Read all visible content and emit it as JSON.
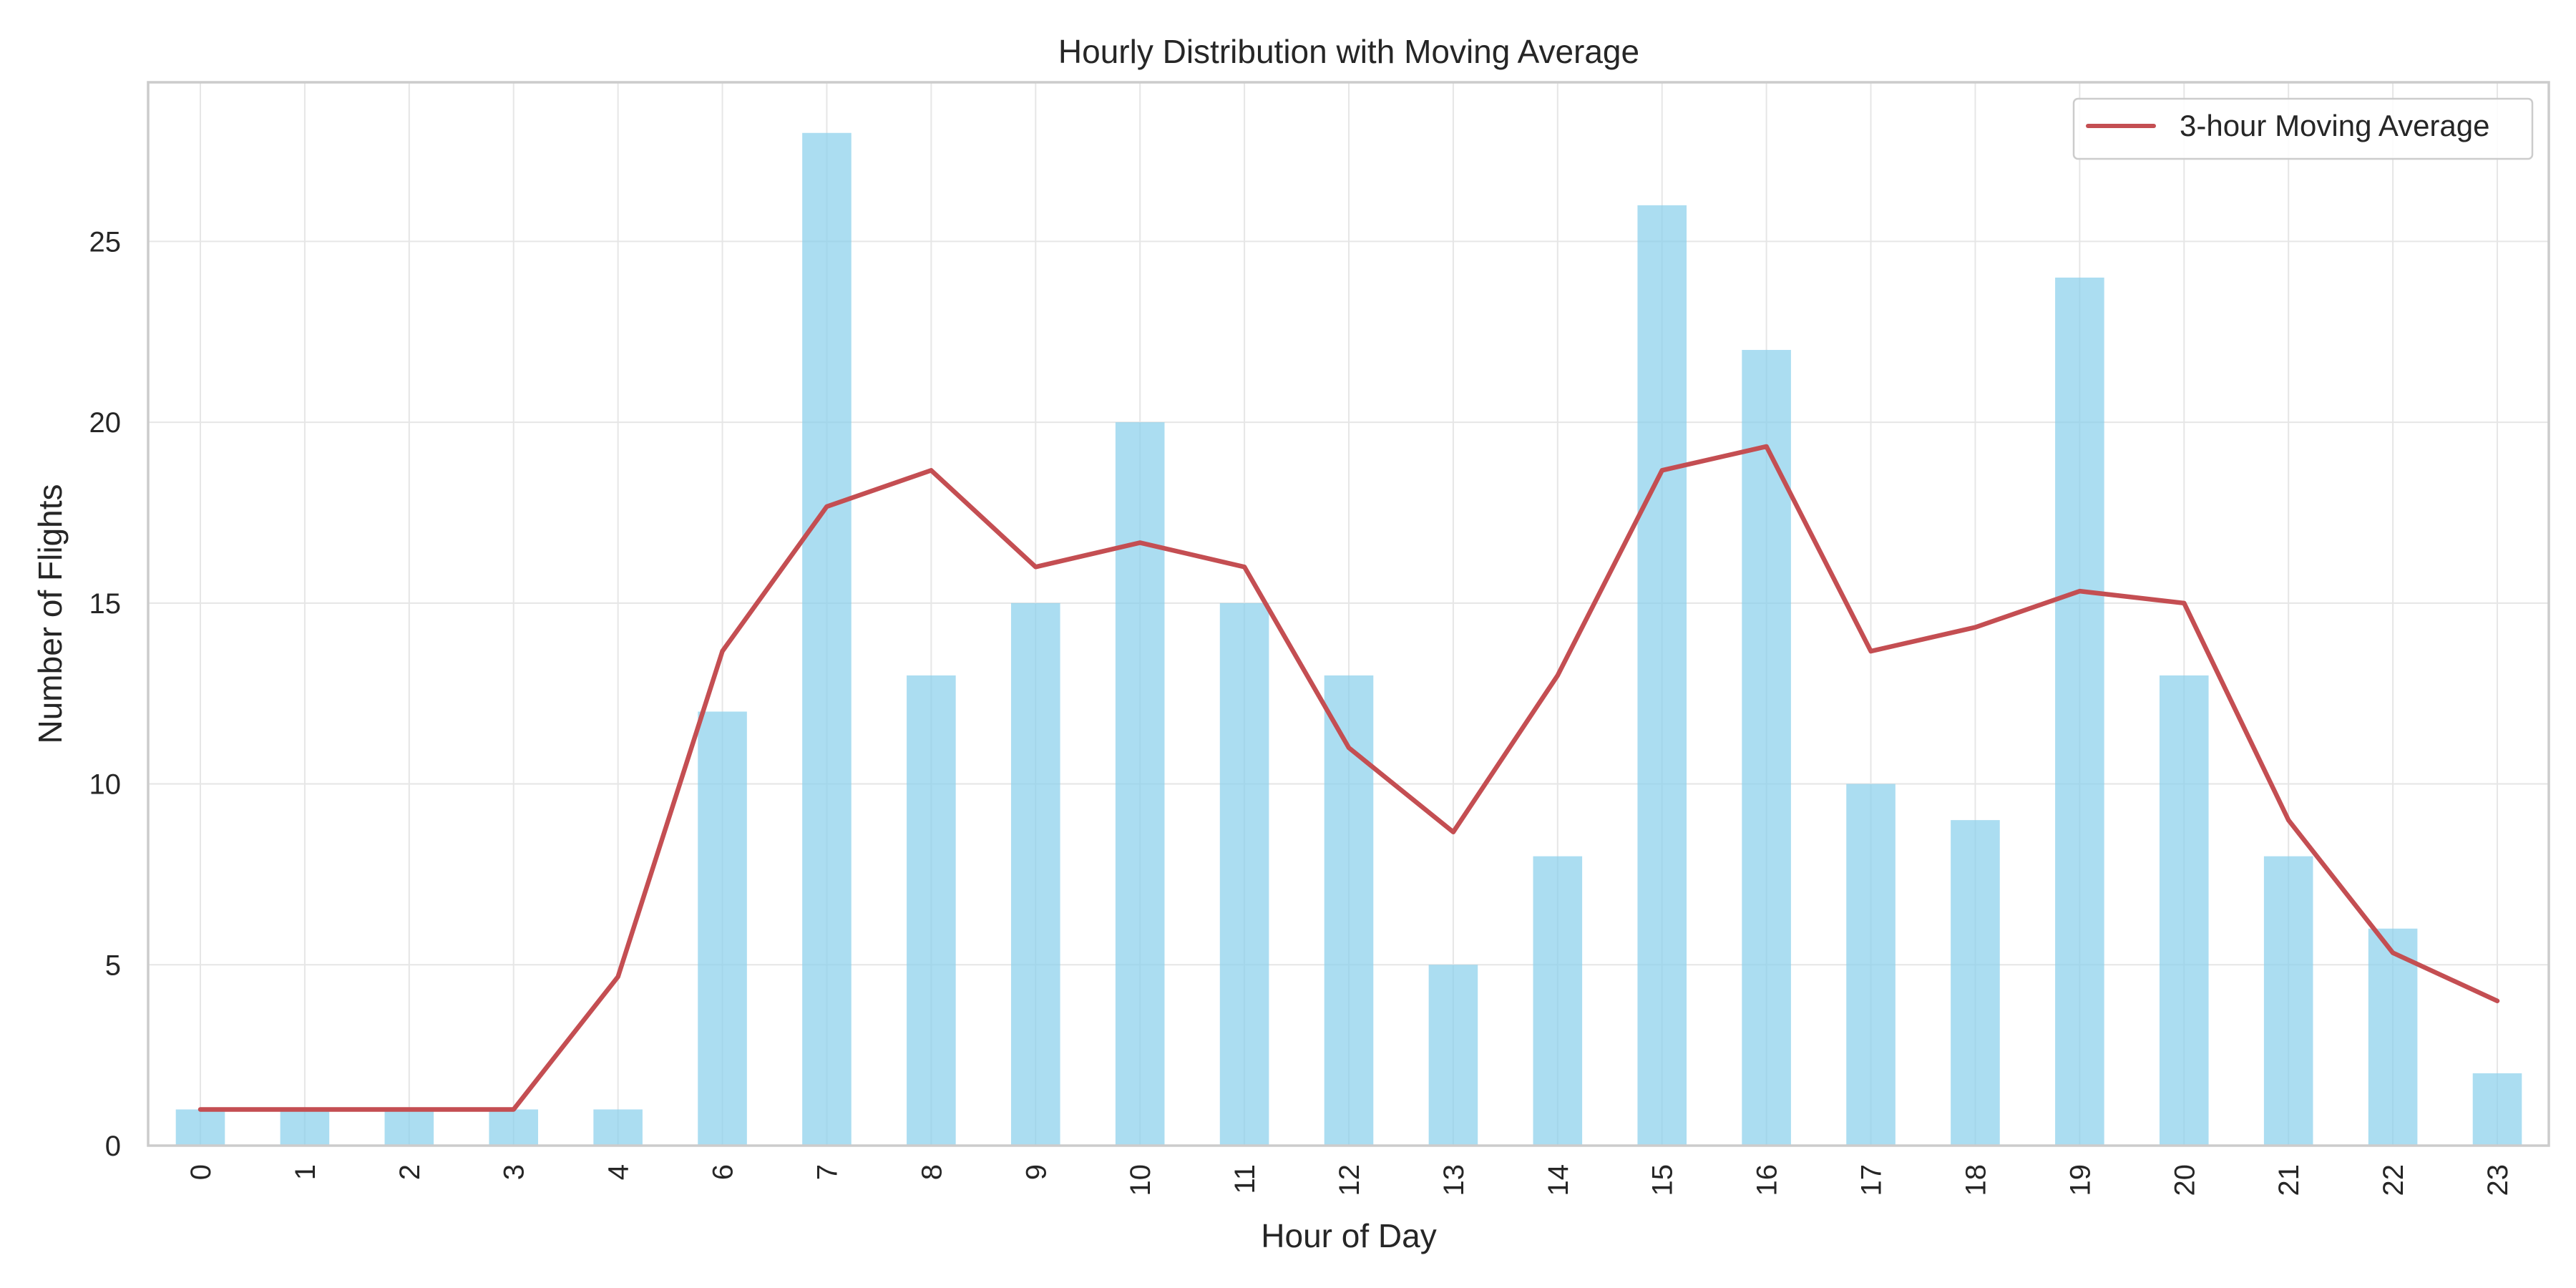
{
  "chart_data": {
    "type": "bar",
    "title": "Hourly Distribution with Moving Average",
    "xlabel": "Hour of Day",
    "ylabel": "Number of Flights",
    "categories": [
      "0",
      "1",
      "2",
      "3",
      "4",
      "6",
      "7",
      "8",
      "9",
      "10",
      "11",
      "12",
      "13",
      "14",
      "15",
      "16",
      "17",
      "18",
      "19",
      "20",
      "21",
      "22",
      "23"
    ],
    "series": [
      {
        "type": "bar",
        "values": [
          1,
          1,
          1,
          1,
          1,
          12,
          28,
          13,
          15,
          20,
          15,
          13,
          5,
          8,
          26,
          22,
          10,
          9,
          24,
          13,
          8,
          6,
          2
        ],
        "color": "#87ceeb"
      },
      {
        "type": "line",
        "name": "3-hour Moving Average",
        "values": [
          1,
          1,
          1,
          1,
          4.67,
          13.67,
          17.67,
          18.67,
          16,
          16.67,
          16,
          11,
          8.67,
          13,
          18.67,
          19.33,
          13.67,
          14.33,
          15.33,
          15,
          9,
          5.33,
          4
        ],
        "color": "#c44e52"
      }
    ],
    "ylim": [
      0,
      29.4
    ],
    "yticks": [
      0,
      5,
      10,
      15,
      20,
      25
    ],
    "grid": true,
    "legend_position": "top-right"
  }
}
